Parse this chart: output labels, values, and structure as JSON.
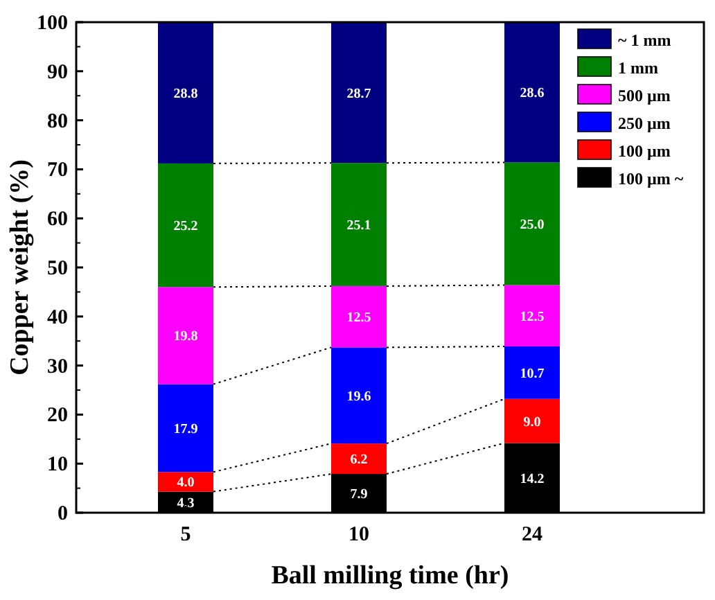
{
  "chart_data": {
    "type": "bar",
    "stacked": true,
    "xlabel": "Ball milling time (hr)",
    "ylabel": "Copper weight (%)",
    "categories": [
      "5",
      "10",
      "24"
    ],
    "ylim": [
      0,
      100
    ],
    "yticks": [
      0,
      10,
      20,
      30,
      40,
      50,
      60,
      70,
      80,
      90,
      100
    ],
    "legend": "top right",
    "series": [
      {
        "name": "100 µm ~",
        "color": "#000000",
        "values": [
          4.3,
          7.9,
          14.2
        ],
        "value_labels": [
          "4.3",
          "7.9",
          "14.2"
        ]
      },
      {
        "name": "100 µm",
        "color": "#ff0000",
        "values": [
          4.0,
          6.2,
          9.0
        ],
        "value_labels": [
          "4.0",
          "6.2",
          "9.0"
        ]
      },
      {
        "name": "250 µm",
        "color": "#0000ff",
        "values": [
          17.9,
          19.6,
          10.7
        ],
        "value_labels": [
          "17.9",
          "19.6",
          "10.7"
        ]
      },
      {
        "name": "500 µm",
        "color": "#ff00ff",
        "values": [
          19.8,
          12.5,
          12.5
        ],
        "value_labels": [
          "19.8",
          "12.5",
          "12.5"
        ]
      },
      {
        "name": "1 mm",
        "color": "#008000",
        "values": [
          25.2,
          25.1,
          25.0
        ],
        "value_labels": [
          "25.2",
          "25.1",
          "25.0"
        ]
      },
      {
        "name": "~ 1 mm",
        "color": "#000080",
        "values": [
          28.8,
          28.7,
          28.6
        ],
        "value_labels": [
          "28.8",
          "28.7",
          "28.6"
        ]
      }
    ]
  }
}
